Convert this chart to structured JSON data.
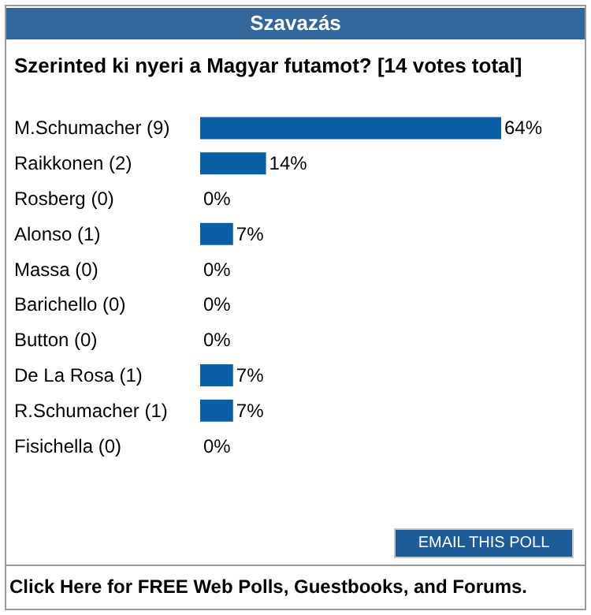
{
  "chart_data": {
    "type": "bar",
    "orientation": "horizontal",
    "title": "Szavazás",
    "subtitle": "Szerinted ki nyeri a Magyar futamot? [14 votes total]",
    "categories": [
      "M.Schumacher (9)",
      "Raikkonen (2)",
      "Rosberg (0)",
      "Alonso (1)",
      "Massa (0)",
      "Barichello (0)",
      "Button (0)",
      "De La Rosa (1)",
      "R.Schumacher (1)",
      "Fisichella (0)"
    ],
    "values": [
      64,
      14,
      0,
      7,
      0,
      0,
      0,
      7,
      7,
      0
    ],
    "value_labels": [
      "64%",
      "14%",
      "0%",
      "7%",
      "0%",
      "0%",
      "0%",
      "7%",
      "7%",
      "0%"
    ],
    "color": "#0b5fa5",
    "grid": false,
    "annotations": [
      "EMAIL THIS POLL",
      "Click Here for FREE Web Polls, Guestbooks, and Forums."
    ]
  }
}
